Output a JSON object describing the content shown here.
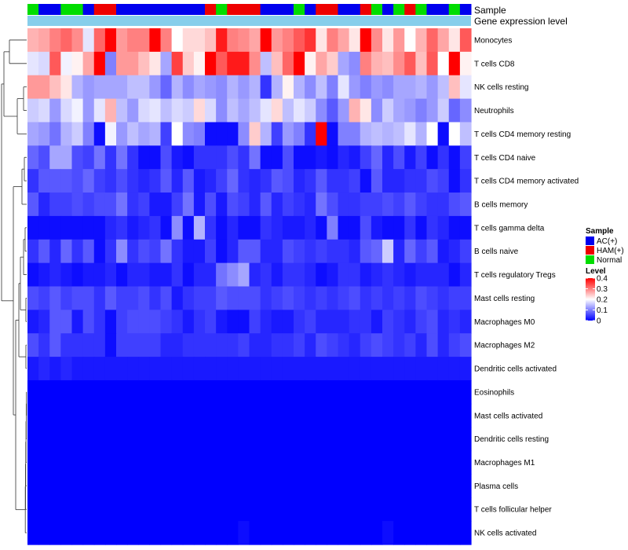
{
  "chart_data": {
    "type": "heatmap",
    "title": "",
    "annotation_rows": [
      "Sample",
      "Gene expression level"
    ],
    "sample_legend": {
      "title": "Sample",
      "entries": [
        {
          "label": "AC(+)",
          "color": "#0000ee"
        },
        {
          "label": "HAM(+)",
          "color": "#ee0000"
        },
        {
          "label": "Normal",
          "color": "#00dd00"
        }
      ]
    },
    "sample_groups": [
      "Normal",
      "AC(+)",
      "AC(+)",
      "Normal",
      "Normal",
      "AC(+)",
      "HAM(+)",
      "HAM(+)",
      "AC(+)",
      "AC(+)",
      "AC(+)",
      "AC(+)",
      "AC(+)",
      "AC(+)",
      "AC(+)",
      "AC(+)",
      "HAM(+)",
      "Normal",
      "HAM(+)",
      "HAM(+)",
      "HAM(+)",
      "AC(+)",
      "AC(+)",
      "AC(+)",
      "Normal",
      "AC(+)",
      "HAM(+)",
      "HAM(+)",
      "AC(+)",
      "AC(+)",
      "HAM(+)",
      "Normal",
      "AC(+)",
      "Normal",
      "HAM(+)",
      "Normal",
      "AC(+)",
      "AC(+)",
      "Normal",
      "AC(+)"
    ],
    "expression_bar_color": "#87ceeb",
    "level_legend": {
      "title": "Level",
      "ticks": [
        "0.4",
        "0.3",
        "0.2",
        "0.1",
        "0"
      ],
      "min": 0,
      "max": 0.4,
      "colors": {
        "low": "#0000ff",
        "mid": "#ffffff",
        "high": "#ff0000"
      }
    },
    "row_labels": [
      "Monocytes",
      "T cells CD8",
      "NK cells resting",
      "Neutrophils",
      "T cells CD4 memory resting",
      "T cells CD4 naive",
      "T cells CD4 memory activated",
      "B cells memory",
      "T cells gamma delta",
      "B cells naive",
      "T cells regulatory  Tregs",
      "Mast cells resting",
      "Macrophages M0",
      "Macrophages M2",
      "Dendritic cells activated",
      "Eosinophils",
      "Mast cells activated",
      "Dendritic cells resting",
      "Macrophages M1",
      "Plasma cells",
      "T cells follicular helper",
      "NK cells activated"
    ],
    "values": [
      [
        0.26,
        0.27,
        0.3,
        0.32,
        0.29,
        0.18,
        0.32,
        0.4,
        0.28,
        0.3,
        0.3,
        0.4,
        0.3,
        0.2,
        0.23,
        0.23,
        0.25,
        0.38,
        0.3,
        0.29,
        0.27,
        0.4,
        0.28,
        0.3,
        0.33,
        0.36,
        0.22,
        0.3,
        0.27,
        0.22,
        0.4,
        0.29,
        0.22,
        0.28,
        0.2,
        0.26,
        0.32,
        0.27,
        0.22,
        0.33
      ],
      [
        0.18,
        0.17,
        0.33,
        0.19,
        0.21,
        0.27,
        0.4,
        0.1,
        0.28,
        0.28,
        0.25,
        0.22,
        0.13,
        0.35,
        0.24,
        0.21,
        0.4,
        0.33,
        0.38,
        0.38,
        0.29,
        0.15,
        0.25,
        0.32,
        0.4,
        0.21,
        0.27,
        0.24,
        0.13,
        0.11,
        0.3,
        0.26,
        0.25,
        0.29,
        0.33,
        0.25,
        0.33,
        0.2,
        0.4,
        0.21
      ],
      [
        0.28,
        0.28,
        0.25,
        0.22,
        0.14,
        0.12,
        0.13,
        0.13,
        0.13,
        0.15,
        0.15,
        0.12,
        0.08,
        0.14,
        0.11,
        0.13,
        0.12,
        0.11,
        0.14,
        0.12,
        0.14,
        0.04,
        0.14,
        0.21,
        0.14,
        0.11,
        0.15,
        0.1,
        0.18,
        0.12,
        0.1,
        0.12,
        0.11,
        0.13,
        0.13,
        0.14,
        0.12,
        0.15,
        0.25,
        0.18
      ],
      [
        0.16,
        0.17,
        0.12,
        0.17,
        0.19,
        0.12,
        0.18,
        0.26,
        0.15,
        0.12,
        0.17,
        0.18,
        0.15,
        0.17,
        0.16,
        0.23,
        0.17,
        0.11,
        0.15,
        0.13,
        0.15,
        0.18,
        0.23,
        0.15,
        0.18,
        0.16,
        0.11,
        0.07,
        0.12,
        0.26,
        0.22,
        0.11,
        0.16,
        0.13,
        0.12,
        0.1,
        0.12,
        0.16,
        0.08,
        0.11
      ],
      [
        0.13,
        0.12,
        0.09,
        0.14,
        0.16,
        0.1,
        0.01,
        0.19,
        0.12,
        0.15,
        0.13,
        0.14,
        0.05,
        0.2,
        0.11,
        0.1,
        0.01,
        0.01,
        0.01,
        0.11,
        0.24,
        0.14,
        0.05,
        0.12,
        0.1,
        0.04,
        0.4,
        0.01,
        0.1,
        0.1,
        0.14,
        0.15,
        0.14,
        0.15,
        0.18,
        0.14,
        0.2,
        0.01,
        0.2,
        0.15
      ],
      [
        0.08,
        0.06,
        0.13,
        0.13,
        0.06,
        0.05,
        0.09,
        0.04,
        0.09,
        0.04,
        0.01,
        0.01,
        0.06,
        0.02,
        0.01,
        0.04,
        0.04,
        0.04,
        0.06,
        0.04,
        0.09,
        0.01,
        0.01,
        0.06,
        0.01,
        0.01,
        0.02,
        0.01,
        0.03,
        0.02,
        0.05,
        0.08,
        0.03,
        0.06,
        0.02,
        0.05,
        0.01,
        0.04,
        0.01,
        0.05
      ],
      [
        0.04,
        0.07,
        0.07,
        0.07,
        0.06,
        0.08,
        0.05,
        0.04,
        0.06,
        0.04,
        0.03,
        0.04,
        0.07,
        0.03,
        0.07,
        0.02,
        0.03,
        0.05,
        0.08,
        0.04,
        0.03,
        0.04,
        0.07,
        0.06,
        0.03,
        0.04,
        0.07,
        0.04,
        0.04,
        0.05,
        0.01,
        0.07,
        0.03,
        0.03,
        0.04,
        0.04,
        0.06,
        0.05,
        0.01,
        0.04
      ],
      [
        0.07,
        0.03,
        0.05,
        0.05,
        0.06,
        0.05,
        0.06,
        0.06,
        0.09,
        0.04,
        0.05,
        0.02,
        0.02,
        0.05,
        0.09,
        0.02,
        0.06,
        0.02,
        0.06,
        0.05,
        0.03,
        0.07,
        0.03,
        0.05,
        0.04,
        0.03,
        0.09,
        0.06,
        0.04,
        0.04,
        0.05,
        0.05,
        0.06,
        0.05,
        0.07,
        0.05,
        0.04,
        0.04,
        0.06,
        0.07
      ],
      [
        0.01,
        0.01,
        0.01,
        0.01,
        0.01,
        0.01,
        0.01,
        0.03,
        0.04,
        0.02,
        0.03,
        0.04,
        0.01,
        0.11,
        0.01,
        0.14,
        0.04,
        0.01,
        0.03,
        0.01,
        0.01,
        0.04,
        0.03,
        0.02,
        0.02,
        0.03,
        0.01,
        0.1,
        0.01,
        0.01,
        0.06,
        0.02,
        0.01,
        0.01,
        0.04,
        0.01,
        0.04,
        0.03,
        0.01,
        0.01
      ],
      [
        0.04,
        0.07,
        0.03,
        0.08,
        0.04,
        0.07,
        0.01,
        0.04,
        0.11,
        0.04,
        0.06,
        0.05,
        0.09,
        0.04,
        0.02,
        0.02,
        0.05,
        0.01,
        0.03,
        0.07,
        0.07,
        0.03,
        0.03,
        0.06,
        0.05,
        0.04,
        0.05,
        0.04,
        0.04,
        0.03,
        0.07,
        0.08,
        0.16,
        0.03,
        0.08,
        0.05,
        0.07,
        0.02,
        0.03,
        0.05
      ],
      [
        0.01,
        0.02,
        0.03,
        0.02,
        0.01,
        0.02,
        0.02,
        0.03,
        0.01,
        0.03,
        0.03,
        0.02,
        0.02,
        0.04,
        0.01,
        0.03,
        0.03,
        0.09,
        0.11,
        0.13,
        0.03,
        0.04,
        0.02,
        0.04,
        0.04,
        0.03,
        0.01,
        0.02,
        0.04,
        0.04,
        0.02,
        0.03,
        0.04,
        0.03,
        0.02,
        0.03,
        0.03,
        0.03,
        0.01,
        0.03
      ],
      [
        0.06,
        0.05,
        0.07,
        0.05,
        0.06,
        0.06,
        0.04,
        0.07,
        0.05,
        0.05,
        0.06,
        0.04,
        0.06,
        0.02,
        0.04,
        0.05,
        0.05,
        0.07,
        0.06,
        0.06,
        0.06,
        0.04,
        0.05,
        0.06,
        0.05,
        0.04,
        0.05,
        0.04,
        0.05,
        0.06,
        0.04,
        0.05,
        0.04,
        0.05,
        0.04,
        0.06,
        0.05,
        0.04,
        0.05,
        0.05
      ],
      [
        0.02,
        0.03,
        0.07,
        0.07,
        0.02,
        0.06,
        0.04,
        0.01,
        0.05,
        0.06,
        0.06,
        0.06,
        0.05,
        0.04,
        0.02,
        0.04,
        0.05,
        0.02,
        0.01,
        0.01,
        0.05,
        0.03,
        0.02,
        0.02,
        0.04,
        0.05,
        0.03,
        0.03,
        0.03,
        0.04,
        0.04,
        0.02,
        0.05,
        0.04,
        0.03,
        0.05,
        0.06,
        0.03,
        0.04,
        0.03
      ],
      [
        0.06,
        0.04,
        0.07,
        0.04,
        0.04,
        0.04,
        0.04,
        0.01,
        0.05,
        0.05,
        0.05,
        0.05,
        0.03,
        0.03,
        0.04,
        0.04,
        0.04,
        0.04,
        0.04,
        0.05,
        0.03,
        0.03,
        0.04,
        0.04,
        0.05,
        0.03,
        0.06,
        0.05,
        0.04,
        0.03,
        0.05,
        0.06,
        0.05,
        0.04,
        0.05,
        0.03,
        0.06,
        0.03,
        0.05,
        0.06
      ],
      [
        0.02,
        0.03,
        0.02,
        0.03,
        0.02,
        0.02,
        0.02,
        0.02,
        0.02,
        0.02,
        0.02,
        0.02,
        0.02,
        0.02,
        0.02,
        0.02,
        0.02,
        0.02,
        0.02,
        0.02,
        0.02,
        0.02,
        0.02,
        0.02,
        0.02,
        0.02,
        0.02,
        0.02,
        0.02,
        0.02,
        0.02,
        0.02,
        0.02,
        0.02,
        0.02,
        0.02,
        0.02,
        0.02,
        0.02,
        0.02
      ],
      [
        0.0,
        0.0,
        0.0,
        0.0,
        0.0,
        0.0,
        0.0,
        0.0,
        0.0,
        0.0,
        0.0,
        0.0,
        0.0,
        0.0,
        0.0,
        0.0,
        0.0,
        0.0,
        0.0,
        0.0,
        0.0,
        0.0,
        0.0,
        0.0,
        0.0,
        0.0,
        0.0,
        0.0,
        0.0,
        0.0,
        0.0,
        0.0,
        0.0,
        0.0,
        0.0,
        0.0,
        0.0,
        0.0,
        0.0,
        0.0
      ],
      [
        0.0,
        0.0,
        0.0,
        0.0,
        0.0,
        0.0,
        0.0,
        0.0,
        0.0,
        0.0,
        0.0,
        0.0,
        0.0,
        0.0,
        0.0,
        0.0,
        0.0,
        0.0,
        0.0,
        0.0,
        0.0,
        0.0,
        0.0,
        0.0,
        0.0,
        0.0,
        0.0,
        0.0,
        0.0,
        0.0,
        0.0,
        0.0,
        0.0,
        0.0,
        0.0,
        0.0,
        0.0,
        0.0,
        0.0,
        0.0
      ],
      [
        0.0,
        0.0,
        0.0,
        0.0,
        0.0,
        0.0,
        0.0,
        0.0,
        0.0,
        0.0,
        0.0,
        0.0,
        0.0,
        0.0,
        0.0,
        0.0,
        0.0,
        0.0,
        0.0,
        0.0,
        0.0,
        0.0,
        0.0,
        0.0,
        0.0,
        0.0,
        0.0,
        0.0,
        0.0,
        0.0,
        0.0,
        0.0,
        0.0,
        0.0,
        0.0,
        0.0,
        0.0,
        0.0,
        0.0,
        0.0
      ],
      [
        0.0,
        0.0,
        0.0,
        0.0,
        0.0,
        0.0,
        0.0,
        0.0,
        0.0,
        0.0,
        0.0,
        0.0,
        0.0,
        0.0,
        0.0,
        0.0,
        0.0,
        0.0,
        0.0,
        0.0,
        0.0,
        0.0,
        0.0,
        0.0,
        0.0,
        0.0,
        0.0,
        0.0,
        0.0,
        0.0,
        0.0,
        0.0,
        0.0,
        0.0,
        0.0,
        0.0,
        0.0,
        0.0,
        0.0,
        0.0
      ],
      [
        0.0,
        0.0,
        0.0,
        0.0,
        0.0,
        0.0,
        0.0,
        0.0,
        0.0,
        0.0,
        0.0,
        0.0,
        0.0,
        0.0,
        0.0,
        0.0,
        0.0,
        0.0,
        0.0,
        0.0,
        0.0,
        0.0,
        0.0,
        0.0,
        0.0,
        0.0,
        0.0,
        0.0,
        0.0,
        0.0,
        0.0,
        0.0,
        0.0,
        0.0,
        0.0,
        0.0,
        0.0,
        0.0,
        0.0,
        0.0
      ],
      [
        0.0,
        0.0,
        0.0,
        0.0,
        0.0,
        0.0,
        0.0,
        0.0,
        0.0,
        0.0,
        0.0,
        0.0,
        0.0,
        0.0,
        0.0,
        0.0,
        0.0,
        0.0,
        0.0,
        0.0,
        0.0,
        0.0,
        0.0,
        0.0,
        0.0,
        0.0,
        0.0,
        0.0,
        0.0,
        0.0,
        0.0,
        0.0,
        0.0,
        0.0,
        0.0,
        0.0,
        0.0,
        0.0,
        0.0,
        0.0
      ],
      [
        0.0,
        0.0,
        0.0,
        0.0,
        0.0,
        0.0,
        0.0,
        0.0,
        0.0,
        0.0,
        0.0,
        0.0,
        0.0,
        0.0,
        0.0,
        0.0,
        0.0,
        0.0,
        0.0,
        0.01,
        0.0,
        0.0,
        0.0,
        0.0,
        0.0,
        0.0,
        0.0,
        0.0,
        0.0,
        0.0,
        0.0,
        0.0,
        0.01,
        0.0,
        0.0,
        0.0,
        0.0,
        0.0,
        0.0,
        0.0
      ]
    ]
  }
}
